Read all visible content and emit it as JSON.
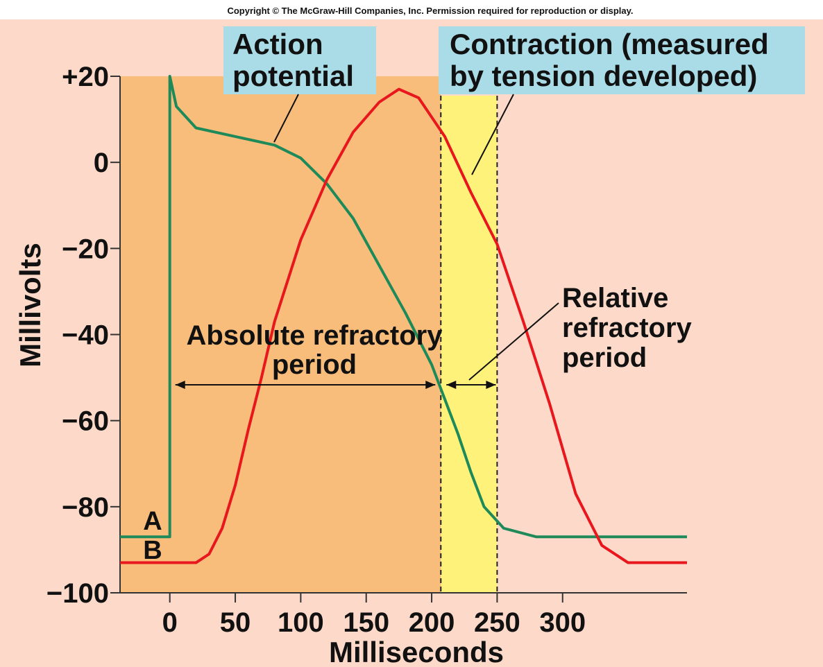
{
  "copyright": "Copyright © The McGraw-Hill Companies, Inc. Permission required for reproduction or display.",
  "chart_data": {
    "type": "line",
    "xlabel": "Milliseconds",
    "ylabel": "Millivolts",
    "xlim": [
      -38,
      395
    ],
    "ylim": [
      -100,
      20
    ],
    "xticks": [
      0,
      50,
      100,
      150,
      200,
      250,
      300
    ],
    "yticks": [
      {
        "value": 20,
        "label": "+20"
      },
      0,
      {
        "value": -20,
        "label": "−20"
      },
      {
        "value": -40,
        "label": "−40"
      },
      {
        "value": -60,
        "label": "−60"
      },
      {
        "value": -80,
        "label": "−80"
      },
      {
        "value": -100,
        "label": "−100"
      }
    ],
    "series": [
      {
        "name": "A",
        "color": "#1e8a5a",
        "x": [
          -38,
          0,
          0,
          5,
          20,
          50,
          80,
          100,
          120,
          140,
          160,
          180,
          200,
          210,
          220,
          230,
          240,
          255,
          280,
          395
        ],
        "values": [
          -87,
          -87,
          20,
          13,
          8,
          6,
          4,
          1,
          -5,
          -13,
          -24,
          -35,
          -47,
          -55,
          -63,
          -72,
          -80,
          -85,
          -87,
          -87
        ],
        "callout": [
          "Action",
          "potential"
        ]
      },
      {
        "name": "B",
        "color": "#e8171e",
        "x": [
          -38,
          20,
          30,
          40,
          50,
          60,
          70,
          80,
          100,
          120,
          140,
          160,
          175,
          190,
          210,
          230,
          250,
          270,
          290,
          310,
          330,
          350,
          395
        ],
        "values": [
          -93,
          -93,
          -91,
          -85,
          -75,
          -62,
          -50,
          -37,
          -18,
          -4,
          7,
          14,
          17,
          15,
          6,
          -7,
          -19,
          -37,
          -56,
          -77,
          -89,
          -93,
          -93
        ],
        "callout": [
          "Contraction (measured",
          "by tension developed)"
        ]
      }
    ],
    "periods": [
      {
        "label": [
          "Absolute refractory",
          "period"
        ],
        "start": 0,
        "end": 207,
        "color": "#f8bd7a"
      },
      {
        "label": [
          "Relative",
          "refractory",
          "period"
        ],
        "start": 207,
        "end": 250,
        "color": "#fff27a"
      }
    ]
  }
}
